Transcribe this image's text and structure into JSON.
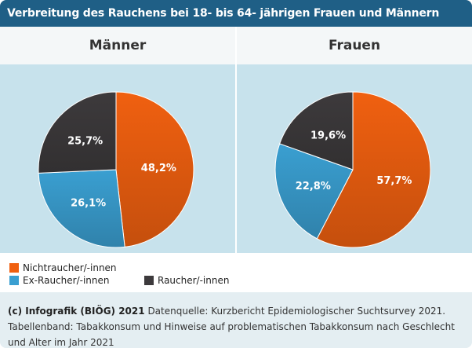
{
  "title": "Verbreitung des Rauchens bei 18- bis 64- jährigen Frauen und Männern",
  "colors": {
    "Nichtraucher/-innen": "#f06010",
    "Ex-Raucher/-innen": "#3a9fd1",
    "Raucher/-innen": "#3d3a3c"
  },
  "chart_data": [
    {
      "type": "pie",
      "title": "Männer",
      "categories": [
        "Nichtraucher/-innen",
        "Ex-Raucher/-innen",
        "Raucher/-innen"
      ],
      "values": [
        48.2,
        26.1,
        25.7
      ],
      "labels": [
        "48,2%",
        "26,1%",
        "25,7%"
      ]
    },
    {
      "type": "pie",
      "title": "Frauen",
      "categories": [
        "Nichtraucher/-innen",
        "Ex-Raucher/-innen",
        "Raucher/-innen"
      ],
      "values": [
        57.7,
        22.8,
        19.6
      ],
      "labels": [
        "57,7%",
        "22,8%",
        "19,6%"
      ]
    }
  ],
  "legend": [
    {
      "label": "Nichtraucher/-innen"
    },
    {
      "label": "Ex-Raucher/-innen"
    },
    {
      "label": "Raucher/-innen"
    }
  ],
  "footer": {
    "credit": "(c) Infografik (BIÖG) 2021",
    "source": "Datenquelle: Kurzbericht Epidemiologischer Suchtsurvey 2021. Tabellenband: Tabakkonsum und Hinweise auf problematischen Tabakkonsum nach Geschlecht und Alter im Jahr 2021"
  }
}
